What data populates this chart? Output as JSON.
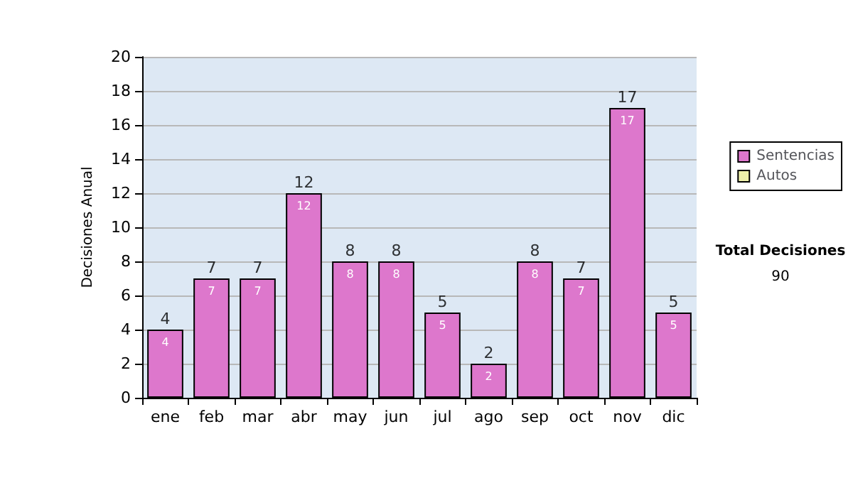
{
  "chart_data": {
    "type": "bar",
    "ylabel": "Decisiones Anual",
    "categories": [
      "ene",
      "feb",
      "mar",
      "abr",
      "may",
      "jun",
      "jul",
      "ago",
      "sep",
      "oct",
      "nov",
      "dic"
    ],
    "series": [
      {
        "name": "Sentencias",
        "color": "#dd77cc",
        "values": [
          4,
          7,
          7,
          12,
          8,
          8,
          5,
          2,
          8,
          7,
          17,
          5
        ]
      },
      {
        "name": "Autos",
        "color": "#eef0aa",
        "values": [
          null,
          null,
          null,
          null,
          null,
          null,
          null,
          null,
          null,
          null,
          null,
          null
        ]
      }
    ],
    "stacked": true,
    "data_labels": true,
    "totals": [
      "4",
      "7",
      "7",
      "12",
      "8",
      "8",
      "5",
      "2",
      "8",
      "7",
      "17",
      "5"
    ],
    "ylim": [
      0,
      20
    ],
    "yticks": [
      0,
      2,
      4,
      6,
      8,
      10,
      12,
      14,
      16,
      18,
      20
    ],
    "grid": "y",
    "legend": "right",
    "annotations": [
      "Total Decisiones",
      "90"
    ]
  }
}
